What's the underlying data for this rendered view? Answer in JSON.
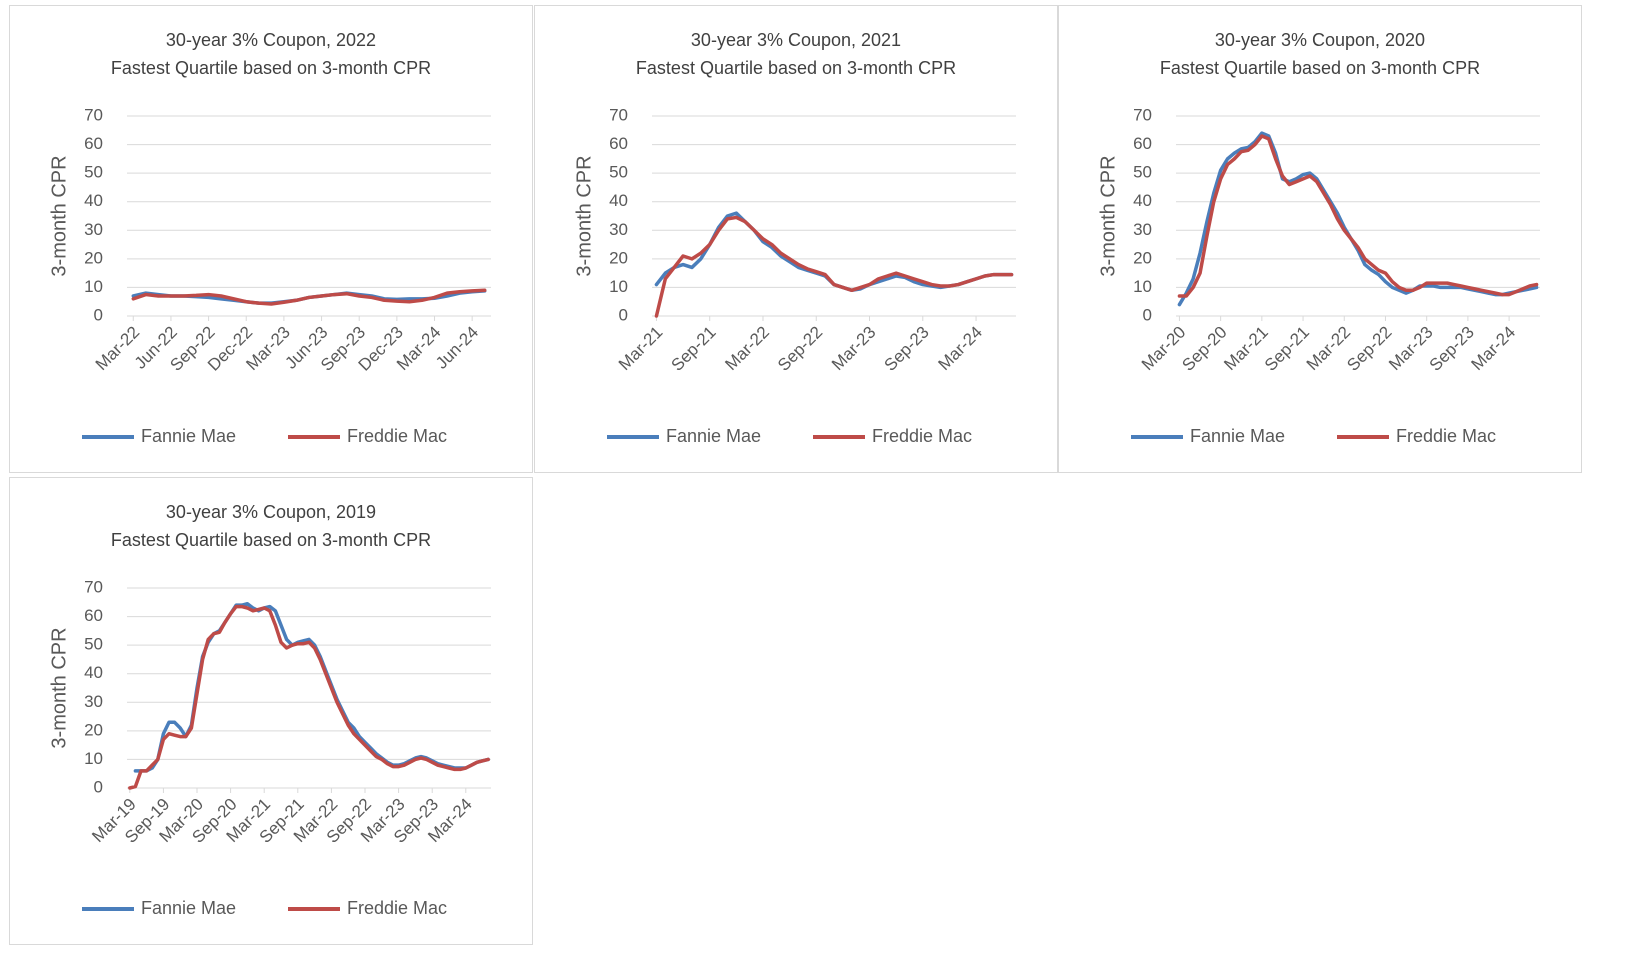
{
  "chart_data": [
    {
      "type": "line",
      "title": "30-year 3% Coupon, 2022",
      "subtitle": "Fastest Quartile based on 3-month CPR",
      "y_label": "3-month CPR",
      "categories": [
        "Mar-22",
        null,
        null,
        "Jun-22",
        null,
        null,
        "Sep-22",
        null,
        null,
        "Dec-22",
        null,
        null,
        "Mar-23",
        null,
        null,
        "Jun-23",
        null,
        null,
        "Sep-23",
        null,
        null,
        "Dec-23",
        null,
        null,
        "Mar-24",
        null,
        null,
        "Jun-24",
        null
      ],
      "series": [
        {
          "name": "Fannie Mae",
          "color": "#4a7ebb",
          "values": [
            7,
            8,
            7.5,
            7,
            7,
            6.8,
            6.5,
            6,
            5.5,
            5,
            4.5,
            4.5,
            5,
            5.5,
            6.5,
            7,
            7.5,
            8,
            7.5,
            7,
            6,
            5.8,
            6,
            6,
            6.2,
            7,
            8,
            8.5,
            8.8
          ]
        },
        {
          "name": "Freddie Mac",
          "color": "#be4b48",
          "values": [
            6,
            7.5,
            7,
            7,
            7,
            7.2,
            7.5,
            7,
            6,
            5,
            4.5,
            4.2,
            4.8,
            5.5,
            6.5,
            7,
            7.5,
            7.8,
            7,
            6.5,
            5.5,
            5.2,
            5,
            5.5,
            6.5,
            8,
            8.5,
            8.8,
            9
          ]
        }
      ],
      "ylim": [
        0,
        70
      ],
      "yticks": [
        0,
        10,
        20,
        30,
        40,
        50,
        60,
        70
      ],
      "grid": true,
      "legend": "bottom"
    },
    {
      "type": "line",
      "title": "30-year 3% Coupon, 2021",
      "subtitle": "Fastest Quartile based on 3-month CPR",
      "y_label": "3-month CPR",
      "categories": [
        "Mar-21",
        null,
        null,
        null,
        null,
        null,
        "Sep-21",
        null,
        null,
        null,
        null,
        null,
        "Mar-22",
        null,
        null,
        null,
        null,
        null,
        "Sep-22",
        null,
        null,
        null,
        null,
        null,
        "Mar-23",
        null,
        null,
        null,
        null,
        null,
        "Sep-23",
        null,
        null,
        null,
        null,
        null,
        "Mar-24",
        null,
        null,
        null,
        null
      ],
      "series": [
        {
          "name": "Fannie Mae",
          "color": "#4a7ebb",
          "values": [
            11,
            15,
            17,
            18,
            17,
            20,
            25,
            31,
            35,
            36,
            33,
            30,
            26,
            24,
            21,
            19,
            17,
            16,
            15,
            14,
            11,
            10,
            9,
            9.5,
            11,
            12,
            13,
            14,
            13.5,
            12,
            11,
            10.5,
            10,
            10.5,
            11,
            12,
            13,
            14,
            14.5,
            14.5,
            14.5
          ]
        },
        {
          "name": "Freddie Mac",
          "color": "#be4b48",
          "values": [
            0,
            13,
            17,
            21,
            20,
            22,
            25,
            30,
            34,
            34.5,
            33,
            30,
            27,
            25,
            22,
            20,
            18,
            16.5,
            15.5,
            14.5,
            11,
            10,
            9,
            10,
            11,
            13,
            14,
            15,
            14,
            13,
            12,
            11,
            10.5,
            10.5,
            11,
            12,
            13,
            14,
            14.5,
            14.5,
            14.5
          ]
        }
      ],
      "ylim": [
        0,
        70
      ],
      "yticks": [
        0,
        10,
        20,
        30,
        40,
        50,
        60,
        70
      ],
      "grid": true,
      "legend": "bottom"
    },
    {
      "type": "line",
      "title": "30-year 3% Coupon, 2020",
      "subtitle": "Fastest Quartile based on 3-month CPR",
      "y_label": "3-month CPR",
      "categories": [
        "Mar-20",
        null,
        null,
        null,
        null,
        null,
        "Sep-20",
        null,
        null,
        null,
        null,
        null,
        "Mar-21",
        null,
        null,
        null,
        null,
        null,
        "Sep-21",
        null,
        null,
        null,
        null,
        null,
        "Mar-22",
        null,
        null,
        null,
        null,
        null,
        "Sep-22",
        null,
        null,
        null,
        null,
        null,
        "Mar-23",
        null,
        null,
        null,
        null,
        null,
        "Sep-23",
        null,
        null,
        null,
        null,
        null,
        "Mar-24",
        null,
        null,
        null,
        null
      ],
      "series": [
        {
          "name": "Fannie Mae",
          "color": "#4a7ebb",
          "values": [
            4,
            8,
            13,
            22,
            33,
            43,
            51,
            55,
            57,
            58.5,
            59,
            61,
            64,
            63,
            57,
            48,
            47,
            48,
            49.5,
            50,
            48,
            44,
            40,
            36,
            31,
            27,
            23,
            18,
            16,
            14.5,
            12,
            10,
            9,
            8,
            9,
            10.5,
            10.5,
            10.5,
            10,
            10,
            10,
            10,
            9.5,
            9,
            8.5,
            8,
            7.5,
            7.5,
            8,
            8.5,
            9,
            9.5,
            10
          ]
        },
        {
          "name": "Freddie Mac",
          "color": "#be4b48",
          "values": [
            7,
            7,
            10,
            15,
            28,
            40,
            48,
            53,
            55,
            57.5,
            58,
            60,
            63,
            62,
            55,
            49,
            46,
            47,
            48,
            49,
            47,
            43,
            39,
            34,
            30,
            27,
            24,
            20,
            18,
            16,
            15,
            12,
            10,
            9,
            9,
            10,
            11.5,
            11.5,
            11.5,
            11.5,
            11,
            10.5,
            10,
            9.5,
            9,
            8.5,
            8,
            7.5,
            7.5,
            8.5,
            9.5,
            10.5,
            11
          ]
        }
      ],
      "ylim": [
        0,
        70
      ],
      "yticks": [
        0,
        10,
        20,
        30,
        40,
        50,
        60,
        70
      ],
      "grid": true,
      "legend": "bottom"
    },
    {
      "type": "line",
      "title": "30-year 3% Coupon, 2019",
      "subtitle": "Fastest Quartile based on 3-month CPR",
      "y_label": "3-month CPR",
      "categories": [
        "Mar-19",
        null,
        null,
        null,
        null,
        null,
        "Sep-19",
        null,
        null,
        null,
        null,
        null,
        "Mar-20",
        null,
        null,
        null,
        null,
        null,
        "Sep-20",
        null,
        null,
        null,
        null,
        null,
        "Mar-21",
        null,
        null,
        null,
        null,
        null,
        "Sep-21",
        null,
        null,
        null,
        null,
        null,
        "Mar-22",
        null,
        null,
        null,
        null,
        null,
        "Sep-22",
        null,
        null,
        null,
        null,
        null,
        "Mar-23",
        null,
        null,
        null,
        null,
        null,
        "Sep-23",
        null,
        null,
        null,
        null,
        null,
        "Mar-24",
        null,
        null,
        null,
        null
      ],
      "series": [
        {
          "name": "Fannie Mae",
          "color": "#4a7ebb",
          "values": [
            null,
            6,
            6,
            6,
            7,
            10,
            19,
            23,
            23,
            21,
            18,
            22,
            35,
            46,
            51,
            54,
            55,
            58,
            61,
            64,
            64,
            64.5,
            63,
            62,
            63,
            63.5,
            62,
            57,
            52,
            50,
            51,
            51.5,
            52,
            50,
            46,
            41,
            36,
            31,
            27,
            23,
            21,
            18,
            16,
            14,
            12,
            10.5,
            9,
            8,
            8,
            8.5,
            9.5,
            10.5,
            11,
            10.5,
            9.5,
            8.5,
            8,
            7.5,
            7,
            7,
            7,
            8,
            9,
            9.5,
            10
          ]
        },
        {
          "name": "Freddie Mac",
          "color": "#be4b48",
          "values": [
            0,
            0.5,
            6,
            6,
            8,
            10,
            17,
            19,
            18.5,
            18,
            18,
            21,
            33,
            45,
            52,
            54,
            54.5,
            58,
            61,
            63.5,
            63.5,
            63,
            62,
            62.5,
            63,
            62,
            57,
            51,
            49,
            50,
            50.5,
            50.5,
            51,
            49,
            45,
            40,
            35,
            30,
            26,
            22,
            19,
            17,
            15,
            13,
            11,
            10,
            8.5,
            7.5,
            7.5,
            8,
            9,
            10,
            10.5,
            10,
            9,
            8,
            7.5,
            7,
            6.5,
            6.5,
            7,
            8,
            9,
            9.5,
            10
          ]
        }
      ],
      "ylim": [
        0,
        70
      ],
      "yticks": [
        0,
        10,
        20,
        30,
        40,
        50,
        60,
        70
      ],
      "grid": true,
      "legend": "bottom"
    }
  ]
}
